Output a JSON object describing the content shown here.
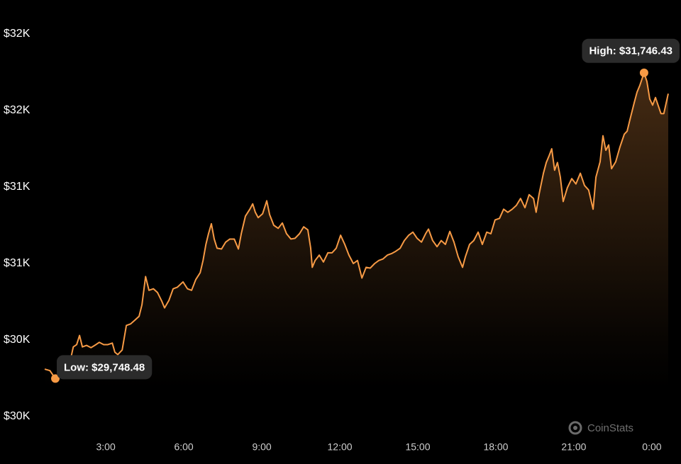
{
  "chart_data": {
    "type": "line",
    "color": "#f79a45",
    "xlim": [
      0.65,
      24.63
    ],
    "xticks": [
      {
        "value": 3,
        "label": "3:00"
      },
      {
        "value": 6,
        "label": "6:00"
      },
      {
        "value": 9,
        "label": "9:00"
      },
      {
        "value": 12,
        "label": "12:00"
      },
      {
        "value": 15,
        "label": "15:00"
      },
      {
        "value": 18,
        "label": "18:00"
      },
      {
        "value": 21,
        "label": "21:00"
      },
      {
        "value": 24,
        "label": "0:00"
      }
    ],
    "ylim": [
      29500,
      32000
    ],
    "yticks": [
      {
        "value": 29500,
        "label": "$30K"
      },
      {
        "value": 30000,
        "label": "$30K"
      },
      {
        "value": 30500,
        "label": "$31K"
      },
      {
        "value": 31000,
        "label": "$31K"
      },
      {
        "value": 31500,
        "label": "$32K"
      },
      {
        "value": 32000,
        "label": "$32K"
      }
    ],
    "x": [
      0.65,
      0.85,
      1.06,
      1.25,
      1.53,
      1.66,
      1.75,
      1.88,
      1.99,
      2.1,
      2.26,
      2.43,
      2.62,
      2.75,
      2.92,
      3.08,
      3.25,
      3.35,
      3.46,
      3.63,
      3.79,
      3.95,
      4.12,
      4.28,
      4.39,
      4.53,
      4.66,
      4.83,
      4.99,
      5.15,
      5.26,
      5.43,
      5.59,
      5.75,
      5.97,
      6.14,
      6.3,
      6.46,
      6.63,
      6.74,
      6.85,
      6.95,
      7.06,
      7.17,
      7.28,
      7.45,
      7.61,
      7.77,
      7.94,
      8.1,
      8.21,
      8.37,
      8.54,
      8.65,
      8.75,
      8.86,
      9.03,
      9.19,
      9.3,
      9.46,
      9.63,
      9.79,
      9.95,
      10.12,
      10.28,
      10.45,
      10.61,
      10.77,
      10.88,
      10.94,
      11.05,
      11.21,
      11.37,
      11.54,
      11.7,
      11.86,
      12.03,
      12.19,
      12.35,
      12.52,
      12.68,
      12.85,
      13.01,
      13.17,
      13.34,
      13.5,
      13.66,
      13.83,
      13.99,
      14.15,
      14.32,
      14.48,
      14.65,
      14.81,
      14.97,
      15.14,
      15.3,
      15.41,
      15.57,
      15.74,
      15.9,
      16.06,
      16.23,
      16.39,
      16.55,
      16.72,
      16.83,
      16.99,
      17.15,
      17.32,
      17.48,
      17.65,
      17.81,
      17.97,
      18.14,
      18.3,
      18.46,
      18.63,
      18.79,
      18.95,
      19.12,
      19.28,
      19.45,
      19.55,
      19.66,
      19.83,
      19.94,
      20.05,
      20.15,
      20.26,
      20.37,
      20.48,
      20.59,
      20.75,
      20.92,
      21.08,
      21.25,
      21.41,
      21.57,
      21.74,
      21.85,
      22.01,
      22.12,
      22.23,
      22.34,
      22.45,
      22.61,
      22.77,
      22.94,
      23.05,
      23.15,
      23.32,
      23.43,
      23.54,
      23.7,
      23.81,
      23.92,
      24.03,
      24.14,
      24.25,
      24.35,
      24.46,
      24.63
    ],
    "values": [
      29810,
      29800,
      29748.48,
      29780,
      29805,
      29885,
      29955,
      29970,
      30030,
      29955,
      29965,
      29950,
      29970,
      29985,
      29970,
      29970,
      29980,
      29920,
      29905,
      29935,
      30095,
      30105,
      30130,
      30155,
      30230,
      30415,
      30325,
      30335,
      30310,
      30255,
      30210,
      30260,
      30335,
      30345,
      30380,
      30335,
      30325,
      30395,
      30440,
      30520,
      30625,
      30695,
      30760,
      30660,
      30600,
      30595,
      30640,
      30660,
      30660,
      30595,
      30695,
      30810,
      30855,
      30890,
      30835,
      30800,
      30825,
      30910,
      30820,
      30750,
      30730,
      30765,
      30695,
      30660,
      30665,
      30695,
      30740,
      30720,
      30600,
      30475,
      30520,
      30555,
      30510,
      30570,
      30570,
      30600,
      30685,
      30625,
      30555,
      30500,
      30520,
      30405,
      30475,
      30470,
      30500,
      30520,
      30530,
      30555,
      30565,
      30580,
      30600,
      30650,
      30685,
      30705,
      30665,
      30640,
      30695,
      30725,
      30650,
      30610,
      30650,
      30625,
      30710,
      30640,
      30545,
      30475,
      30545,
      30625,
      30650,
      30705,
      30625,
      30705,
      30695,
      30785,
      30795,
      30855,
      30835,
      30855,
      30880,
      30925,
      30865,
      30950,
      30925,
      30835,
      30950,
      31090,
      31160,
      31205,
      31250,
      31110,
      31160,
      31065,
      30905,
      30995,
      31055,
      31020,
      31090,
      31010,
      30980,
      30855,
      31065,
      31165,
      31335,
      31240,
      31275,
      31120,
      31165,
      31260,
      31345,
      31365,
      31435,
      31550,
      31620,
      31665,
      31746.43,
      31690,
      31575,
      31535,
      31585,
      31530,
      31480,
      31480,
      31610
    ],
    "annotations": [
      {
        "text": "Low: $29,748.48",
        "x": 1.06
      },
      {
        "text": "High: $31,746.43",
        "x": 23.7
      }
    ],
    "watermark": "CoinStats"
  }
}
